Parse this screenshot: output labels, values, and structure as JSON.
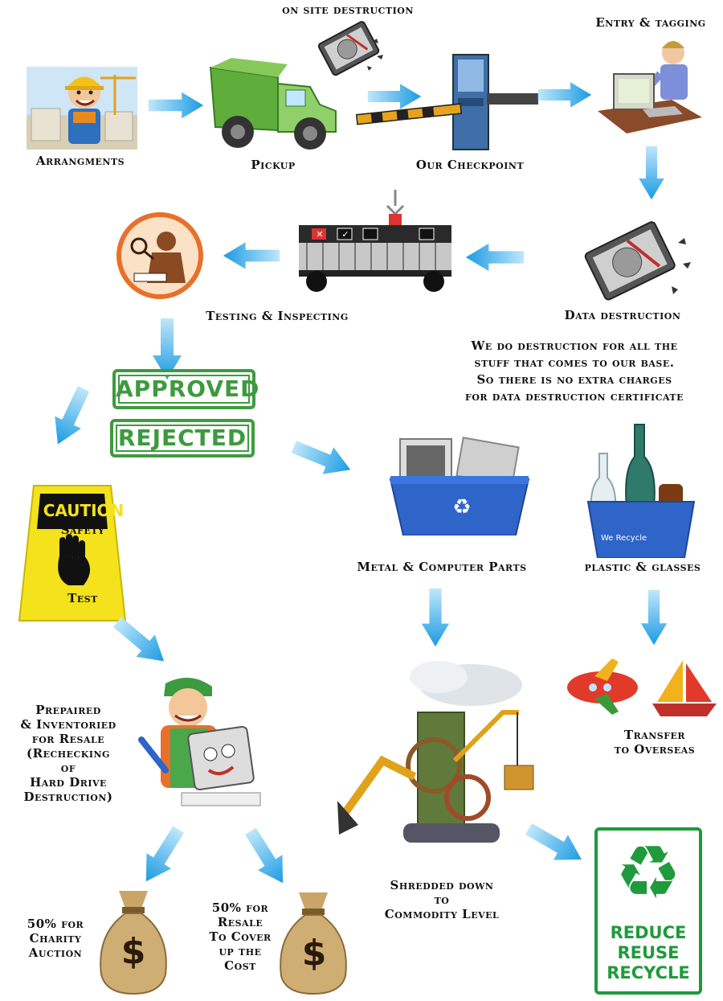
{
  "labels": {
    "on_site": "on site destruction",
    "arrangments": "Arrangments",
    "pickup": "Pickup",
    "checkpoint": "Our Checkpoint",
    "entry": "Entry & tagging",
    "data_destruction": "Data destruction",
    "testing": "Testing & Inspecting",
    "note": "We do destruction for all the\nstuff that comes to our base.\nSo there is no extra charges\nfor data destruction certificate",
    "approved": "APPROVED",
    "rejected": "REJECTED",
    "caution": "CAUTION",
    "safety": "Safety",
    "test": "Test",
    "metal": "Metal & Computer Parts",
    "plastic": "plastic & glasses",
    "we_recycle": "We Recycle",
    "prepaired": "Prepaired\n& Inventoried\nfor Resale\n(Rechecking\nof\nHard Drive\nDestruction)",
    "transfer": "Transfer\nto Overseas",
    "shredded": "Shredded down\nto\nCommodity Level",
    "charity": "50% for\nCharity\nAuction",
    "resale": "50% for\nResale\nTo  Cover\nup the\nCost",
    "reduce": "REDUCE",
    "reuse": "REUSE",
    "recycle": "RECYCLE",
    "dollar": "$"
  },
  "colors": {
    "arrow": "#2aa6e8",
    "stamp_green": "#3e9a3e",
    "recycle_green": "#1f9a3c",
    "bin_blue": "#2f64c8",
    "caution_yellow": "#f4e21c",
    "truck_green": "#5fae3c"
  },
  "icons": {
    "recycle": "♻",
    "check": "✓",
    "cross": "✕"
  }
}
